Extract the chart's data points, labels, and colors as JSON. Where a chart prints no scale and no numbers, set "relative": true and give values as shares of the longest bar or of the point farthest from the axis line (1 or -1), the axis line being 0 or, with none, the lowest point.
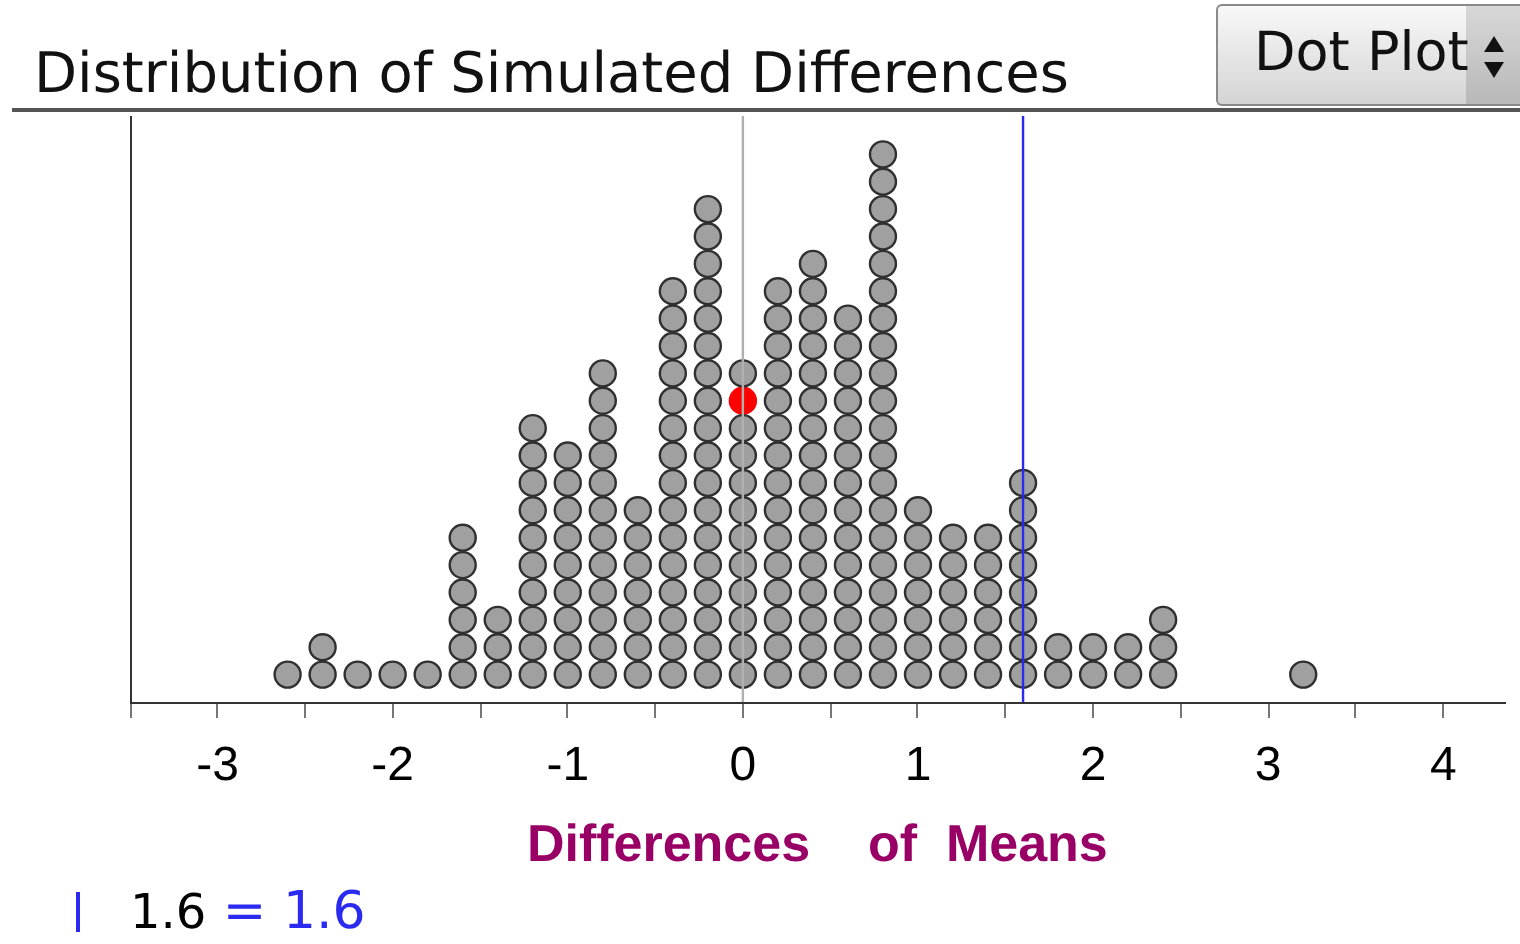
{
  "chart_data": {
    "type": "scatter",
    "title": "Distribution of Simulated Differences",
    "xlabel": "Differences    of  Means",
    "annotations": [
      "Dot Plot"
    ],
    "relative": true,
    "marker": "circle",
    "xlim": [
      -3.5,
      4.35
    ],
    "xticks": [
      {
        "value": -3.5,
        "label": null
      },
      -3,
      {
        "value": -2.5,
        "label": null
      },
      -2,
      {
        "value": -1.5,
        "label": null
      },
      -1,
      {
        "value": -0.5,
        "label": null
      },
      0,
      {
        "value": 0.5,
        "label": null
      },
      1,
      {
        "value": 1.5,
        "label": null
      },
      2,
      {
        "value": 2.5,
        "label": null
      },
      3,
      {
        "value": 3.5,
        "label": null
      },
      4
    ],
    "series": [
      {
        "color": "#a0a0a0",
        "x": [
          -2.6,
          -2.4,
          -2.4,
          -2.2,
          -2,
          -1.8,
          -1.6,
          -1.6,
          -1.6,
          -1.6,
          -1.6,
          -1.6,
          -1.4,
          -1.4,
          -1.4,
          -1.2,
          -1.2,
          -1.2,
          -1.2,
          -1.2,
          -1.2,
          -1.2,
          -1.2,
          -1.2,
          -1.2,
          -1,
          -1,
          -1,
          -1,
          -1,
          -1,
          -1,
          -1,
          -1,
          -0.8,
          -0.8,
          -0.8,
          -0.8,
          -0.8,
          -0.8,
          -0.8,
          -0.8,
          -0.8,
          -0.8,
          -0.8,
          -0.8,
          -0.6,
          -0.6,
          -0.6,
          -0.6,
          -0.6,
          -0.6,
          -0.6,
          -0.4,
          -0.4,
          -0.4,
          -0.4,
          -0.4,
          -0.4,
          -0.4,
          -0.4,
          -0.4,
          -0.4,
          -0.4,
          -0.4,
          -0.4,
          -0.4,
          -0.4,
          -0.2,
          -0.2,
          -0.2,
          -0.2,
          -0.2,
          -0.2,
          -0.2,
          -0.2,
          -0.2,
          -0.2,
          -0.2,
          -0.2,
          -0.2,
          -0.2,
          -0.2,
          -0.2,
          -0.2,
          -0.2,
          0,
          0,
          0,
          0,
          0,
          0,
          0,
          0,
          0,
          0,
          0,
          0.2,
          0.2,
          0.2,
          0.2,
          0.2,
          0.2,
          0.2,
          0.2,
          0.2,
          0.2,
          0.2,
          0.2,
          0.2,
          0.2,
          0.2,
          0.4,
          0.4,
          0.4,
          0.4,
          0.4,
          0.4,
          0.4,
          0.4,
          0.4,
          0.4,
          0.4,
          0.4,
          0.4,
          0.4,
          0.4,
          0.4,
          0.6,
          0.6,
          0.6,
          0.6,
          0.6,
          0.6,
          0.6,
          0.6,
          0.6,
          0.6,
          0.6,
          0.6,
          0.6,
          0.6,
          0.8,
          0.8,
          0.8,
          0.8,
          0.8,
          0.8,
          0.8,
          0.8,
          0.8,
          0.8,
          0.8,
          0.8,
          0.8,
          0.8,
          0.8,
          0.8,
          0.8,
          0.8,
          0.8,
          0.8,
          1,
          1,
          1,
          1,
          1,
          1,
          1,
          1.2,
          1.2,
          1.2,
          1.2,
          1.2,
          1.2,
          1.4,
          1.4,
          1.4,
          1.4,
          1.4,
          1.4,
          1.6,
          1.6,
          1.6,
          1.6,
          1.6,
          1.6,
          1.6,
          1.6,
          1.8,
          1.8,
          2,
          2,
          2.2,
          2.2,
          2.4,
          2.4,
          2.4,
          3.2
        ],
        "values": [
          0.05,
          0.05,
          0.1,
          0.05,
          0.05,
          0.05,
          0.05,
          0.1,
          0.15,
          0.2,
          0.25,
          0.3,
          0.05,
          0.1,
          0.15,
          0.05,
          0.1,
          0.15,
          0.2,
          0.25,
          0.3,
          0.35,
          0.4,
          0.45,
          0.5,
          0.05,
          0.1,
          0.15,
          0.2,
          0.25,
          0.3,
          0.35,
          0.4,
          0.45,
          0.05,
          0.1,
          0.15,
          0.2,
          0.25,
          0.3,
          0.35,
          0.4,
          0.45,
          0.5,
          0.55,
          0.6,
          0.05,
          0.1,
          0.15,
          0.2,
          0.25,
          0.3,
          0.35,
          0.05,
          0.1,
          0.15,
          0.2,
          0.25,
          0.3,
          0.35,
          0.4,
          0.45,
          0.5,
          0.55,
          0.6,
          0.65,
          0.7,
          0.75,
          0.05,
          0.1,
          0.15,
          0.2,
          0.25,
          0.3,
          0.35,
          0.4,
          0.45,
          0.5,
          0.55,
          0.6,
          0.65,
          0.7,
          0.75,
          0.8,
          0.85,
          0.9,
          0.05,
          0.1,
          0.15,
          0.2,
          0.25,
          0.3,
          0.35,
          0.4,
          0.45,
          0.5,
          0.6,
          0.05,
          0.1,
          0.15,
          0.2,
          0.25,
          0.3,
          0.35,
          0.4,
          0.45,
          0.5,
          0.55,
          0.6,
          0.65,
          0.7,
          0.75,
          0.05,
          0.1,
          0.15,
          0.2,
          0.25,
          0.3,
          0.35,
          0.4,
          0.45,
          0.5,
          0.55,
          0.6,
          0.65,
          0.7,
          0.75,
          0.8,
          0.05,
          0.1,
          0.15,
          0.2,
          0.25,
          0.3,
          0.35,
          0.4,
          0.45,
          0.5,
          0.55,
          0.6,
          0.65,
          0.7,
          0.05,
          0.1,
          0.15,
          0.2,
          0.25,
          0.3,
          0.35,
          0.4,
          0.45,
          0.5,
          0.55,
          0.6,
          0.65,
          0.7,
          0.75,
          0.8,
          0.85,
          0.9,
          0.95,
          1,
          0.05,
          0.1,
          0.15,
          0.2,
          0.25,
          0.3,
          0.35,
          0.05,
          0.1,
          0.15,
          0.2,
          0.25,
          0.3,
          0.05,
          0.1,
          0.15,
          0.2,
          0.25,
          0.3,
          0.05,
          0.1,
          0.15,
          0.2,
          0.25,
          0.3,
          0.35,
          0.4,
          0.05,
          0.1,
          0.05,
          0.1,
          0.05,
          0.1,
          0.05,
          0.1,
          0.15,
          0.05
        ]
      },
      {
        "color": "#ff0000",
        "x": [
          0
        ],
        "values": [
          0.55
        ]
      }
    ],
    "ref_lines": [
      {
        "axis": "x",
        "value": 0,
        "color": "#b0b0b0"
      },
      {
        "axis": "x",
        "value": 1.6,
        "label": "1.6 = 1.6",
        "color": "#2a2af0"
      }
    ]
  }
}
